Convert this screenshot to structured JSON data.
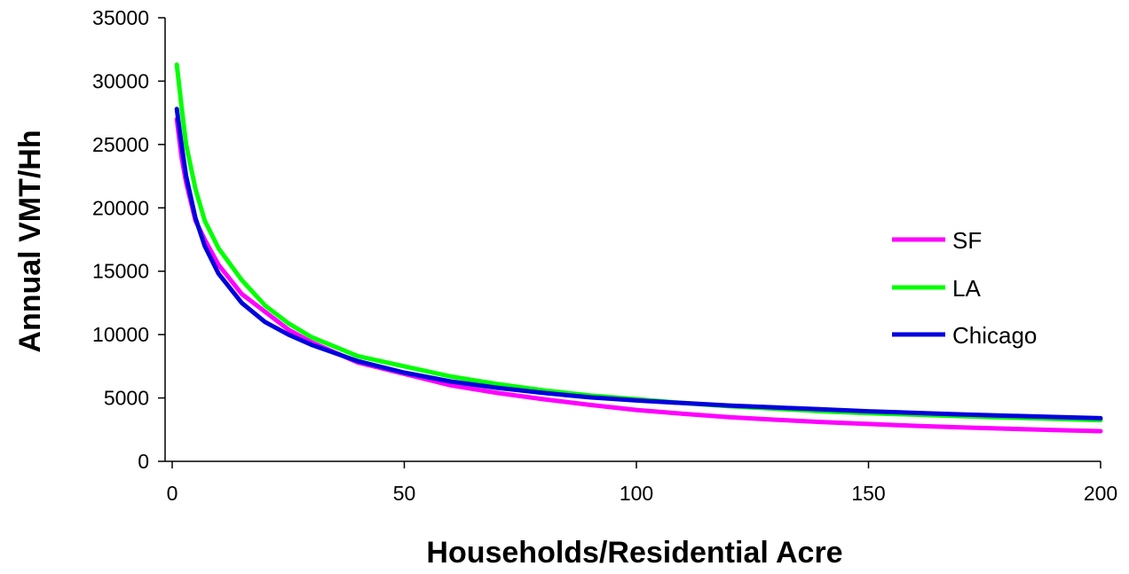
{
  "chart_data": {
    "type": "line",
    "title": "",
    "xlabel": "Households/Residential Acre",
    "ylabel": "Annual VMT/Hh",
    "xlim": [
      0,
      200
    ],
    "ylim": [
      0,
      35000
    ],
    "x_ticks": [
      0,
      50,
      100,
      150,
      200
    ],
    "y_ticks": [
      0,
      5000,
      10000,
      15000,
      20000,
      25000,
      30000,
      35000
    ],
    "grid": false,
    "legend_position": "right",
    "x": [
      1,
      2,
      3,
      5,
      7,
      10,
      15,
      20,
      25,
      30,
      40,
      50,
      60,
      70,
      80,
      90,
      100,
      110,
      120,
      130,
      140,
      150,
      160,
      170,
      180,
      190,
      200
    ],
    "series": [
      {
        "name": "SF",
        "color": "#ff00ff",
        "values": [
          27000,
          24000,
          22000,
          19000,
          17500,
          15500,
          13200,
          11800,
          10400,
          9400,
          7800,
          6900,
          6000,
          5400,
          4900,
          4450,
          4050,
          3750,
          3480,
          3280,
          3100,
          2950,
          2800,
          2680,
          2570,
          2470,
          2380
        ]
      },
      {
        "name": "LA",
        "color": "#00ff00",
        "values": [
          31300,
          28000,
          25000,
          21500,
          19000,
          16800,
          14300,
          12300,
          10900,
          9800,
          8300,
          7500,
          6700,
          6100,
          5600,
          5200,
          4900,
          4600,
          4350,
          4150,
          3950,
          3800,
          3680,
          3560,
          3450,
          3350,
          3250
        ]
      },
      {
        "name": "Chicago",
        "color": "#0000dd",
        "values": [
          27800,
          25000,
          22500,
          19200,
          17000,
          14800,
          12500,
          11000,
          10000,
          9200,
          7900,
          7000,
          6300,
          5800,
          5400,
          5050,
          4800,
          4600,
          4400,
          4250,
          4100,
          3950,
          3820,
          3700,
          3600,
          3500,
          3400
        ]
      }
    ]
  }
}
